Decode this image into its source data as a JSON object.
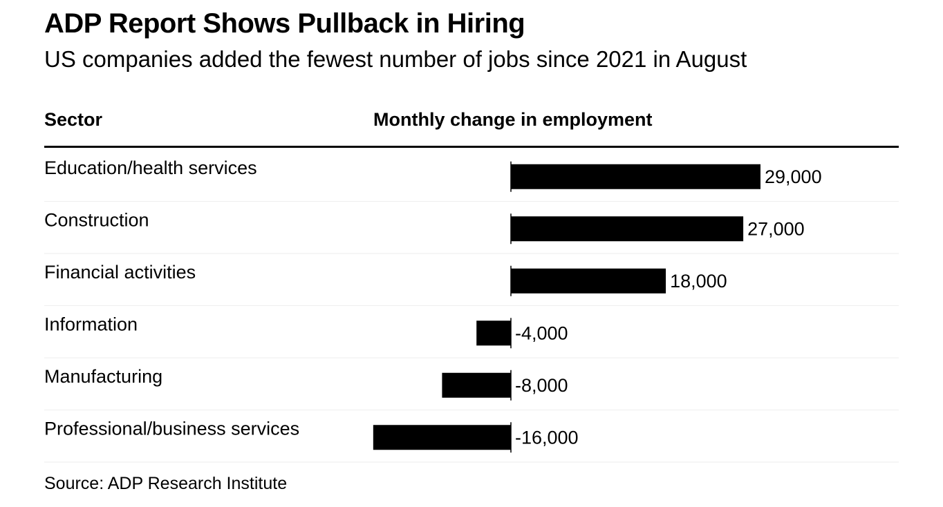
{
  "title": "ADP Report Shows Pullback in Hiring",
  "subtitle": "US companies added the fewest number of jobs since 2021 in August",
  "headers": {
    "sector": "Sector",
    "change": "Monthly change in employment"
  },
  "source": "Source: ADP Research Institute",
  "chart_data": {
    "type": "bar",
    "orientation": "horizontal",
    "title": "ADP Report Shows Pullback in Hiring",
    "subtitle": "US companies added the fewest number of jobs since 2021 in August",
    "xlabel": "Monthly change in employment",
    "ylabel": "Sector",
    "categories": [
      "Education/health services",
      "Construction",
      "Financial activities",
      "Information",
      "Manufacturing",
      "Professional/business services"
    ],
    "values": [
      29000,
      27000,
      18000,
      -4000,
      -8000,
      -16000
    ],
    "value_labels": [
      "29,000",
      "27,000",
      "18,000",
      "-4,000",
      "-8,000",
      "-16,000"
    ],
    "bar_color": "#000000",
    "separator_color": "#eeeeee",
    "grid": false
  }
}
